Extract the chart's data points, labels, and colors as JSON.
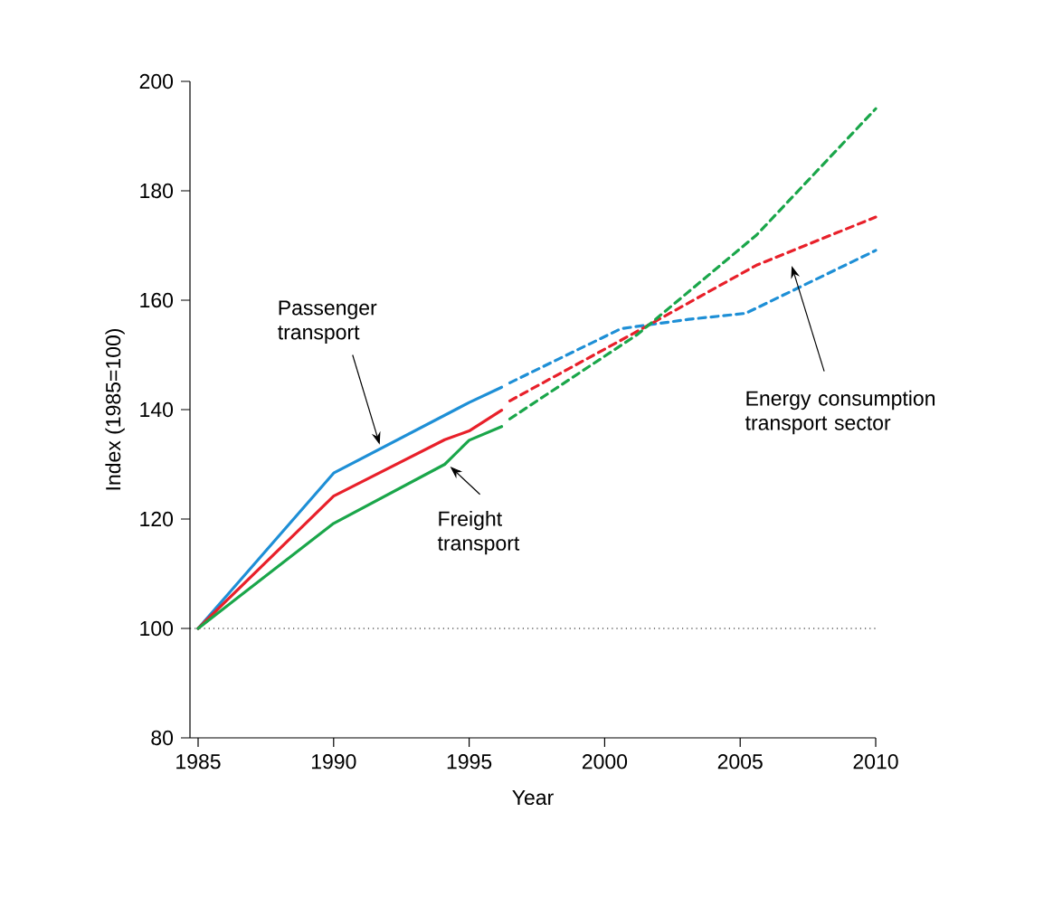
{
  "chart_data": {
    "type": "line",
    "xlabel": "Year",
    "ylabel": "Index (1985=100)",
    "xlim": [
      1984.7,
      2010
    ],
    "ylim": [
      80,
      200
    ],
    "xticks": [
      1985,
      1990,
      1995,
      2000,
      2005,
      2010
    ],
    "yticks": [
      80,
      100,
      120,
      140,
      160,
      180,
      200
    ],
    "grid": false,
    "legend": false,
    "annotations": [
      "Energy consumption transport sector"
    ],
    "ref_lines": [
      {
        "axis": "y",
        "value": 100,
        "color": "#000000",
        "line_style": "dotted"
      }
    ],
    "series": [
      {
        "name": "Passenger transport",
        "color": "#1e8fd6",
        "line_style": "solid",
        "x": [
          1985,
          1990,
          1995,
          1996.2
        ],
        "values": [
          100,
          128.4,
          141.3,
          144.1
        ]
      },
      {
        "color": "#1e8fd6",
        "line_style": "dashed",
        "x": [
          1996.5,
          2000.6,
          2003.1,
          2005.2,
          2010
        ],
        "values": [
          144.9,
          154.8,
          156.5,
          157.6,
          169.1
        ]
      },
      {
        "color": "#e8202a",
        "line_style": "solid",
        "x": [
          1985,
          1990,
          1994.1,
          1995,
          1996.2
        ],
        "values": [
          100,
          124.2,
          134.5,
          136.1,
          139.9
        ]
      },
      {
        "color": "#e8202a",
        "line_style": "dashed",
        "x": [
          1996.5,
          2001.2,
          2005.6,
          2010
        ],
        "values": [
          141.6,
          154.3,
          166.4,
          175.2
        ]
      },
      {
        "name": "Freight transport",
        "color": "#1aa64a",
        "line_style": "solid",
        "x": [
          1985,
          1990,
          1994.1,
          1995,
          1996.2
        ],
        "values": [
          100,
          119.2,
          130.0,
          134.4,
          136.9
        ]
      },
      {
        "color": "#1aa64a",
        "line_style": "dashed",
        "x": [
          1996.5,
          2001.2,
          2005.6,
          2010
        ],
        "values": [
          138.3,
          153.7,
          171.9,
          195.0
        ]
      }
    ]
  }
}
